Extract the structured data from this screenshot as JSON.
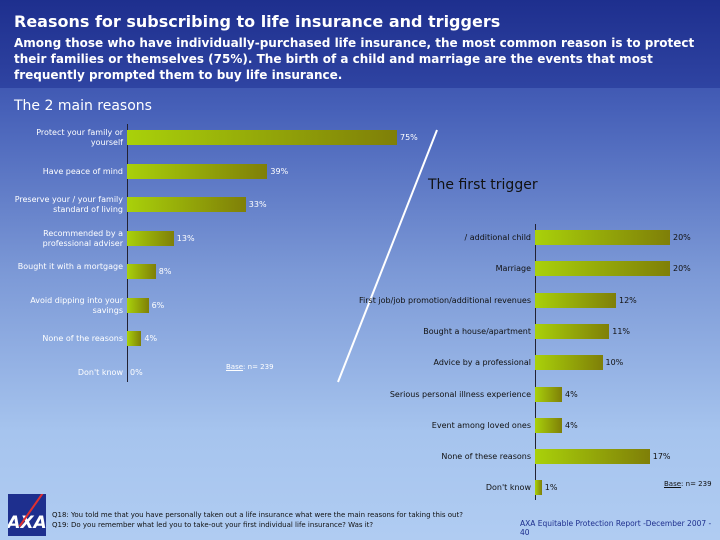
{
  "header": {
    "title": "Reasons for subscribing to life insurance and triggers",
    "subtitle": "Among those who have individually-purchased life insurance, the most common reason is to protect their families or themselves (75%). The birth of a child and marriage are the events that most frequently prompted them to buy life insurance."
  },
  "footer": {
    "q18": "Q18: You told me that you have personally taken out a life insurance what were the main reasons for taking this out?",
    "q19": "Q19: Do you remember what led you to take-out your first individual life insurance? Was it?",
    "report": "AXA Equitable Protection Report -December  2007 - 40",
    "logo": "AXA"
  },
  "chart_data": [
    {
      "type": "bar",
      "orientation": "horizontal",
      "title": "The 2 main reasons",
      "base_label": "Base",
      "base_value": ": n= 239",
      "categories": [
        "Protect your family or yourself",
        "Have peace of mind",
        "Preserve your / your family standard of living",
        "Recommended by a professional adviser",
        "Bought it with a mortgage",
        "Avoid dipping into your savings",
        "None of the reasons",
        "Don't know"
      ],
      "values": [
        75,
        39,
        33,
        13,
        8,
        6,
        4,
        0
      ],
      "labels": [
        "75%",
        "39%",
        "33%",
        "13%",
        "8%",
        "6%",
        "4%",
        "0%"
      ]
    },
    {
      "type": "bar",
      "orientation": "horizontal",
      "title": "The first trigger",
      "base_label": "Base",
      "base_value": ": n= 239",
      "categories": [
        "/ additional child",
        "Marriage",
        "First job/job promotion/additional revenues",
        "Bought a house/apartment",
        "Advice by a professional",
        "Serious personal illness experience",
        "Event among loved ones",
        "None of these reasons",
        "Don't know"
      ],
      "values": [
        20,
        20,
        12,
        11,
        10,
        4,
        4,
        17,
        1
      ],
      "labels": [
        "20%",
        "20%",
        "12%",
        "11%",
        "10%",
        "4%",
        "4%",
        "17%",
        "1%"
      ]
    }
  ]
}
